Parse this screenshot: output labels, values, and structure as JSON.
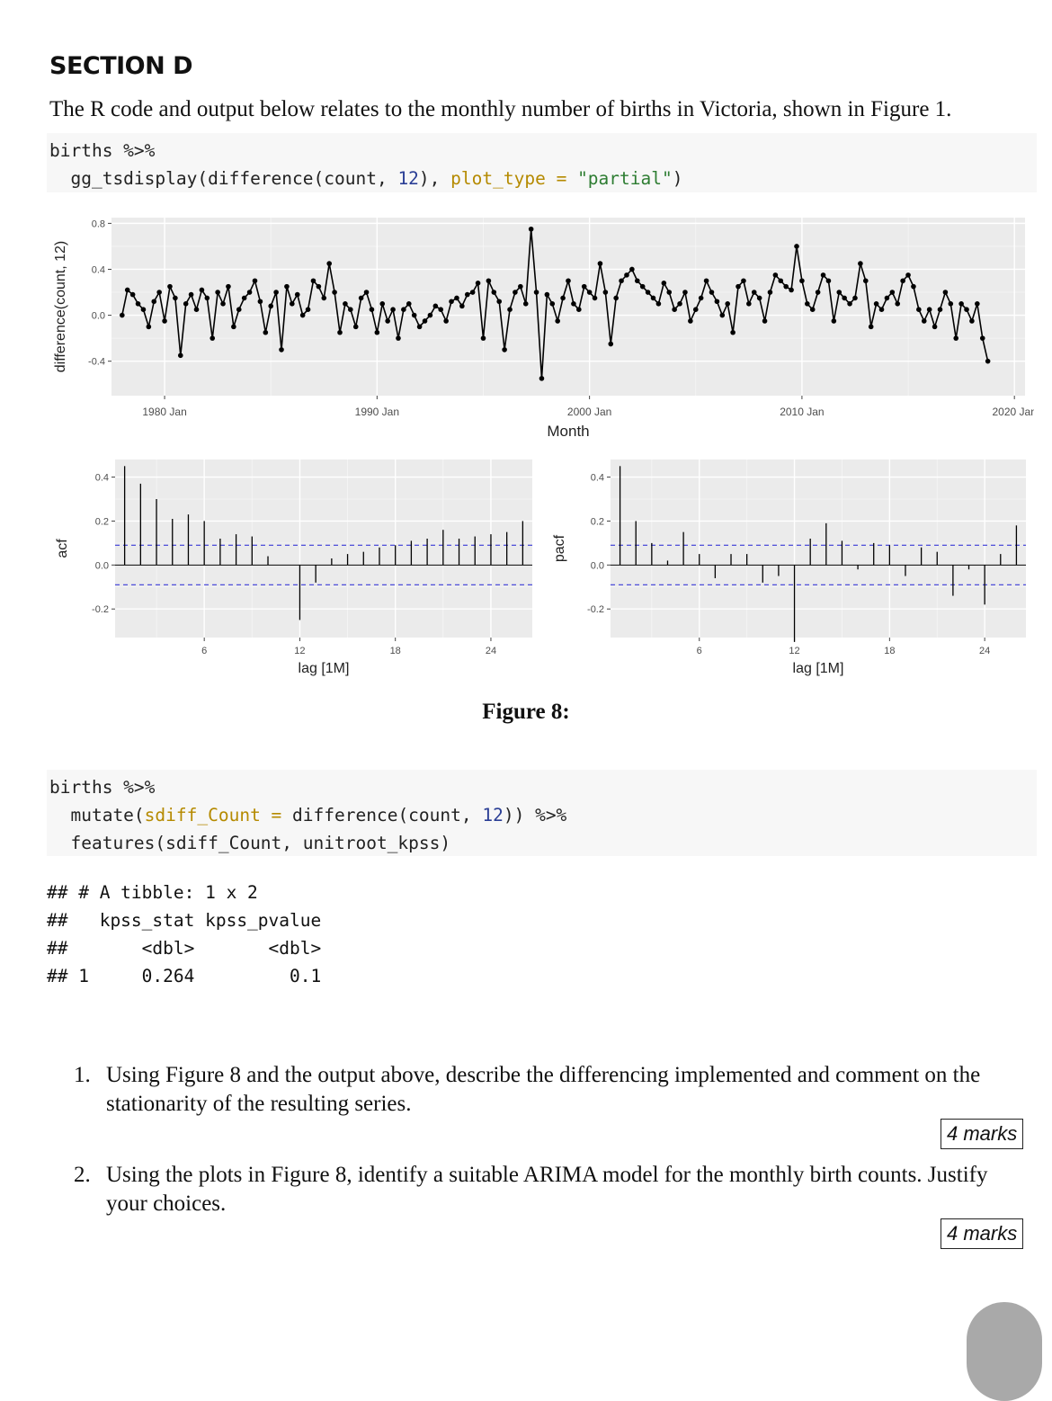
{
  "section_title": "SECTION D",
  "intro": "The R code and output below relates to the monthly number of births in Victoria, shown in Figure 1.",
  "code1": {
    "line1": "births %>%",
    "line2_fn": "gg_tsdisplay(difference(count, ",
    "line2_num": "12",
    "line2_mid": "), ",
    "line2_arg": "plot_type",
    "line2_eq": " = ",
    "line2_str": "\"partial\"",
    "line2_end": ")"
  },
  "figure_caption": "Figure 8:",
  "code2": {
    "line1": "births %>%",
    "line2_pre": "mutate(",
    "line2_arg": "sdiff_Count",
    "line2_eq": " = ",
    "line2_fn": "difference(count, ",
    "line2_num": "12",
    "line2_end": ")) %>%",
    "line3": "features(sdiff_Count, unitroot_kpss)"
  },
  "output": {
    "line1": "## # A tibble: 1 x 2",
    "line2": "##   kpss_stat kpss_pvalue",
    "line3": "##       <dbl>       <dbl>",
    "line4": "## 1     0.264         0.1"
  },
  "questions": [
    {
      "num": "1.",
      "text": "Using Figure 8 and the output above, describe the differencing implemented and comment on the stationarity of the resulting series.",
      "marks": "4 marks"
    },
    {
      "num": "2.",
      "text": "Using the plots in Figure 8, identify a suitable ARIMA model for the monthly birth counts. Justify your choices.",
      "marks": "4 marks"
    }
  ],
  "chart_data": [
    {
      "type": "line",
      "xlabel": "Month",
      "ylabel": "difference(count, 12)",
      "x_ticks": [
        "1980 Jan",
        "1990 Jan",
        "2000 Jan",
        "2010 Jan",
        "2020 Jan"
      ],
      "y_ticks": [
        "0.8",
        "0.4",
        "0.0",
        "-0.4"
      ],
      "ylim": [
        -0.7,
        0.85
      ],
      "xlim": [
        1977.5,
        2020.5
      ],
      "x_start": 1978.0,
      "x_step": 0.25,
      "values": [
        0.0,
        0.22,
        0.18,
        0.1,
        0.05,
        -0.1,
        0.12,
        0.2,
        -0.05,
        0.25,
        0.15,
        -0.35,
        0.1,
        0.18,
        0.05,
        0.22,
        0.15,
        -0.2,
        0.2,
        0.1,
        0.25,
        -0.1,
        0.05,
        0.15,
        0.2,
        0.3,
        0.12,
        -0.15,
        0.08,
        0.2,
        -0.3,
        0.25,
        0.1,
        0.18,
        0.0,
        0.05,
        0.3,
        0.25,
        0.15,
        0.45,
        0.2,
        -0.15,
        0.1,
        0.05,
        -0.1,
        0.15,
        0.2,
        0.05,
        -0.15,
        0.1,
        -0.05,
        0.05,
        -0.2,
        0.05,
        0.1,
        0.0,
        -0.1,
        -0.05,
        0.0,
        0.08,
        0.05,
        -0.05,
        0.12,
        0.15,
        0.08,
        0.18,
        0.2,
        0.28,
        -0.2,
        0.3,
        0.2,
        0.12,
        -0.3,
        0.05,
        0.2,
        0.25,
        0.1,
        0.75,
        0.2,
        -0.55,
        0.18,
        0.1,
        -0.05,
        0.15,
        0.3,
        0.1,
        0.05,
        0.25,
        0.2,
        0.15,
        0.45,
        0.2,
        -0.25,
        0.15,
        0.3,
        0.35,
        0.4,
        0.3,
        0.25,
        0.2,
        0.15,
        0.1,
        0.28,
        0.2,
        0.05,
        0.1,
        0.2,
        -0.05,
        0.05,
        0.15,
        0.3,
        0.2,
        0.12,
        0.0,
        0.1,
        -0.15,
        0.25,
        0.3,
        0.1,
        0.2,
        0.15,
        -0.05,
        0.2,
        0.35,
        0.3,
        0.25,
        0.22,
        0.6,
        0.3,
        0.1,
        0.05,
        0.2,
        0.35,
        0.3,
        -0.05,
        0.2,
        0.15,
        0.1,
        0.15,
        0.45,
        0.3,
        -0.1,
        0.1,
        0.05,
        0.15,
        0.2,
        0.1,
        0.3,
        0.35,
        0.25,
        0.05,
        -0.05,
        0.05,
        -0.1,
        0.05,
        0.2,
        0.1,
        -0.2,
        0.1,
        0.05,
        -0.05,
        0.1,
        -0.2,
        -0.4
      ]
    },
    {
      "type": "bar",
      "ylabel": "acf",
      "xlabel": "lag [1M]",
      "x_ticks": [
        6,
        12,
        18,
        24
      ],
      "y_ticks": [
        "0.4",
        "0.2",
        "0.0",
        "-0.2"
      ],
      "ylim": [
        -0.33,
        0.48
      ],
      "conf_band": 0.09,
      "lags": [
        1,
        2,
        3,
        4,
        5,
        6,
        7,
        8,
        9,
        10,
        11,
        12,
        13,
        14,
        15,
        16,
        17,
        18,
        19,
        20,
        21,
        22,
        23,
        24,
        25,
        26
      ],
      "values": [
        0.45,
        0.37,
        0.3,
        0.21,
        0.23,
        0.2,
        0.12,
        0.14,
        0.13,
        0.04,
        0.0,
        -0.25,
        -0.08,
        0.03,
        0.05,
        0.06,
        0.08,
        0.09,
        0.11,
        0.12,
        0.16,
        0.12,
        0.13,
        0.14,
        0.15,
        0.2
      ]
    },
    {
      "type": "bar",
      "ylabel": "pacf",
      "xlabel": "lag [1M]",
      "x_ticks": [
        6,
        12,
        18,
        24
      ],
      "y_ticks": [
        "0.4",
        "0.2",
        "0.0",
        "-0.2"
      ],
      "ylim": [
        -0.33,
        0.48
      ],
      "conf_band": 0.09,
      "lags": [
        1,
        2,
        3,
        4,
        5,
        6,
        7,
        8,
        9,
        10,
        11,
        12,
        13,
        14,
        15,
        16,
        17,
        18,
        19,
        20,
        21,
        22,
        23,
        24,
        25,
        26
      ],
      "values": [
        0.45,
        0.2,
        0.1,
        0.02,
        0.15,
        0.05,
        -0.06,
        0.05,
        0.05,
        -0.08,
        -0.05,
        -0.35,
        0.12,
        0.19,
        0.11,
        -0.02,
        0.1,
        0.09,
        -0.05,
        0.08,
        0.06,
        -0.14,
        -0.02,
        -0.18,
        0.05,
        0.18
      ]
    }
  ]
}
